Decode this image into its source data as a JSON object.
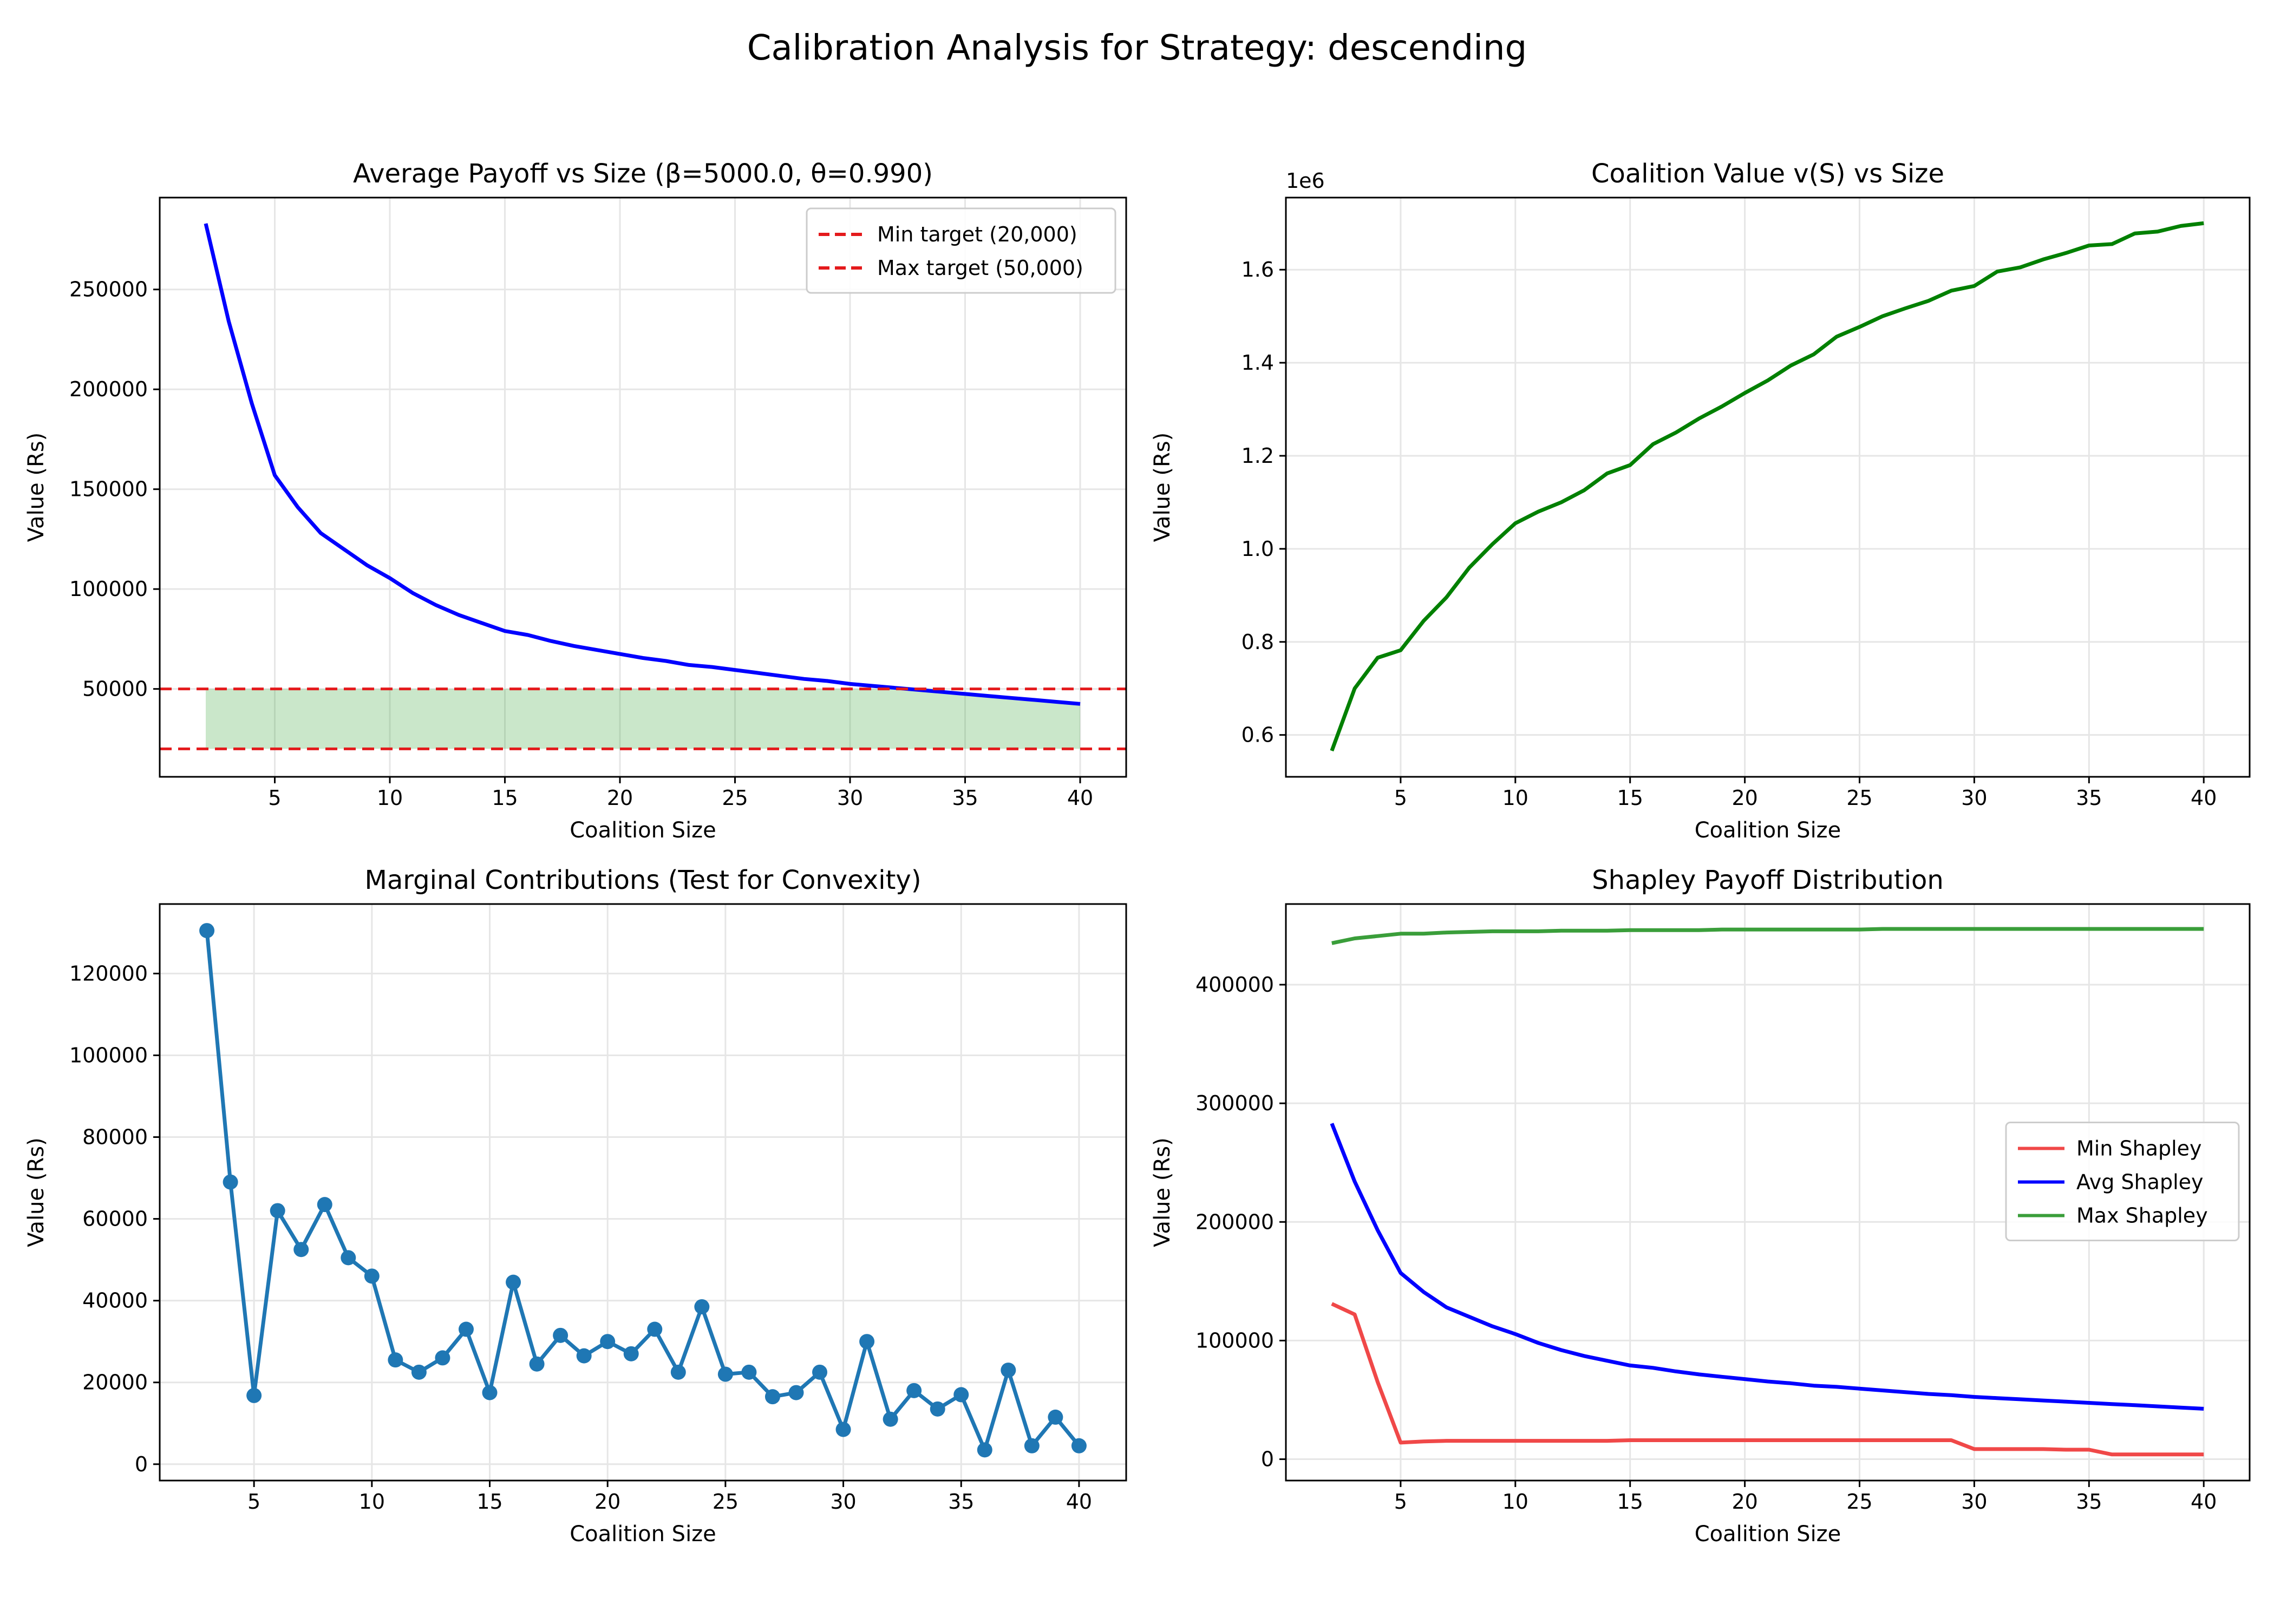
{
  "figure": {
    "suptitle": "Calibration Analysis for Strategy: descending"
  },
  "chart_data": [
    {
      "type": "line",
      "title": "Average Payoff vs Size (β=5000.0, θ=0.990)",
      "xlabel": "Coalition Size",
      "ylabel": "Value (Rs)",
      "xlim": [
        0,
        42
      ],
      "ylim": [
        6000,
        296000
      ],
      "xticks": [
        5,
        10,
        15,
        20,
        25,
        30,
        35,
        40
      ],
      "yticks": [
        50000,
        100000,
        150000,
        200000,
        250000
      ],
      "grid": true,
      "legend_position": "top-right",
      "x": [
        2,
        3,
        4,
        5,
        6,
        7,
        8,
        9,
        10,
        11,
        12,
        13,
        14,
        15,
        16,
        17,
        18,
        19,
        20,
        21,
        22,
        23,
        24,
        25,
        26,
        27,
        28,
        29,
        30,
        31,
        32,
        33,
        34,
        35,
        36,
        37,
        38,
        39,
        40
      ],
      "series": [
        {
          "name": "",
          "color": "#0000ff",
          "values": [
            283000,
            234000,
            193000,
            157000,
            141000,
            128000,
            120000,
            112000,
            105500,
            98000,
            92000,
            87000,
            83000,
            79000,
            77000,
            74000,
            71500,
            69500,
            67500,
            65500,
            64000,
            62000,
            61000,
            59500,
            58000,
            56500,
            55000,
            54000,
            52500,
            51500,
            50500,
            49500,
            48500,
            47500,
            46500,
            45500,
            44500,
            43500,
            42500
          ]
        },
        {
          "name": "Min target (20,000)",
          "color": "#e41a1c",
          "dashed": true,
          "y": 20000
        },
        {
          "name": "Max target (50,000)",
          "color": "#e41a1c",
          "dashed": true,
          "y": 50000
        }
      ],
      "fill_band": {
        "color": "#2ca02c",
        "opacity": 0.25,
        "lower": 20000
      }
    },
    {
      "type": "line",
      "title": "Coalition Value v(S) vs Size",
      "xlabel": "Coalition Size",
      "ylabel": "Value (Rs)",
      "offset_text": "1e6",
      "xlim": [
        0,
        42
      ],
      "ylim": [
        0.51,
        1.755
      ],
      "xticks": [
        5,
        10,
        15,
        20,
        25,
        30,
        35,
        40
      ],
      "yticks": [
        0.6,
        0.8,
        1.0,
        1.2,
        1.4,
        1.6
      ],
      "ytick_labels": [
        "0.6",
        "0.8",
        "1.0",
        "1.2",
        "1.4",
        "1.6"
      ],
      "grid": true,
      "x": [
        2,
        3,
        4,
        5,
        6,
        7,
        8,
        9,
        10,
        11,
        12,
        13,
        14,
        15,
        16,
        17,
        18,
        19,
        20,
        21,
        22,
        23,
        24,
        25,
        26,
        27,
        28,
        29,
        30,
        31,
        32,
        33,
        34,
        35,
        36,
        37,
        38,
        39,
        40
      ],
      "series": [
        {
          "name": "",
          "color": "#008000",
          "values": [
            0.566,
            0.7,
            0.766,
            0.782,
            0.845,
            0.896,
            0.96,
            1.01,
            1.055,
            1.08,
            1.1,
            1.126,
            1.162,
            1.18,
            1.225,
            1.25,
            1.28,
            1.306,
            1.335,
            1.362,
            1.394,
            1.418,
            1.456,
            1.477,
            1.5,
            1.517,
            1.533,
            1.555,
            1.565,
            1.596,
            1.605,
            1.622,
            1.636,
            1.652,
            1.655,
            1.678,
            1.682,
            1.694,
            1.7
          ]
        }
      ]
    },
    {
      "type": "line",
      "title": "Marginal Contributions (Test for Convexity)",
      "xlabel": "Coalition Size",
      "ylabel": "Value (Rs)",
      "xlim": [
        1,
        42
      ],
      "ylim": [
        -4000,
        137000
      ],
      "xticks": [
        5,
        10,
        15,
        20,
        25,
        30,
        35,
        40
      ],
      "yticks": [
        0,
        20000,
        40000,
        60000,
        80000,
        100000,
        120000
      ],
      "grid": true,
      "markers": true,
      "x": [
        3,
        4,
        5,
        6,
        7,
        8,
        9,
        10,
        11,
        12,
        13,
        14,
        15,
        16,
        17,
        18,
        19,
        20,
        21,
        22,
        23,
        24,
        25,
        26,
        27,
        28,
        29,
        30,
        31,
        32,
        33,
        34,
        35,
        36,
        37,
        38,
        39,
        40
      ],
      "series": [
        {
          "name": "",
          "color": "#1f77b4",
          "values": [
            130500,
            69000,
            16800,
            62000,
            52500,
            63500,
            50500,
            46000,
            25500,
            22500,
            26000,
            33000,
            17500,
            44500,
            24500,
            31500,
            26500,
            30000,
            27000,
            33000,
            22500,
            38500,
            22000,
            22500,
            16500,
            17500,
            22500,
            8500,
            30000,
            11000,
            18000,
            13500,
            17000,
            3500,
            23000,
            4500,
            11500,
            4500
          ]
        }
      ]
    },
    {
      "type": "line",
      "title": "Shapley Payoff Distribution",
      "xlabel": "Coalition Size",
      "ylabel": "Value (Rs)",
      "xlim": [
        0,
        42
      ],
      "ylim": [
        -18000,
        468000
      ],
      "xticks": [
        5,
        10,
        15,
        20,
        25,
        30,
        35,
        40
      ],
      "yticks": [
        0,
        100000,
        200000,
        300000,
        400000
      ],
      "grid": true,
      "legend_position": "center-right",
      "x": [
        2,
        3,
        4,
        5,
        6,
        7,
        8,
        9,
        10,
        11,
        12,
        13,
        14,
        15,
        16,
        17,
        18,
        19,
        20,
        21,
        22,
        23,
        24,
        25,
        26,
        27,
        28,
        29,
        30,
        31,
        32,
        33,
        34,
        35,
        36,
        37,
        38,
        39,
        40
      ],
      "series": [
        {
          "name": "Min Shapley",
          "color": "#f04848",
          "values": [
            131000,
            122000,
            65000,
            14000,
            15000,
            15500,
            15500,
            15500,
            15500,
            15500,
            15500,
            15500,
            15500,
            16000,
            16000,
            16000,
            16000,
            16000,
            16000,
            16000,
            16000,
            16000,
            16000,
            16000,
            16000,
            16000,
            16000,
            16000,
            8500,
            8500,
            8500,
            8500,
            8000,
            8000,
            4000,
            4000,
            4000,
            4000,
            4000
          ]
        },
        {
          "name": "Avg Shapley",
          "color": "#0000ff",
          "values": [
            283000,
            234000,
            193000,
            157000,
            141000,
            128000,
            120000,
            112000,
            105500,
            98000,
            92000,
            87000,
            83000,
            79000,
            77000,
            74000,
            71500,
            69500,
            67500,
            65500,
            64000,
            62000,
            61000,
            59500,
            58000,
            56500,
            55000,
            54000,
            52500,
            51500,
            50500,
            49500,
            48500,
            47500,
            46500,
            45500,
            44500,
            43500,
            42500
          ]
        },
        {
          "name": "Max Shapley",
          "color": "#3a9e3a",
          "values": [
            435000,
            439000,
            441000,
            443000,
            443000,
            444000,
            444500,
            445000,
            445000,
            445000,
            445500,
            445500,
            445500,
            446000,
            446000,
            446000,
            446000,
            446500,
            446500,
            446500,
            446500,
            446500,
            446500,
            446500,
            447000,
            447000,
            447000,
            447000,
            447000,
            447000,
            447000,
            447000,
            447000,
            447000,
            447000,
            447000,
            447000,
            447000,
            447000
          ]
        }
      ]
    }
  ]
}
